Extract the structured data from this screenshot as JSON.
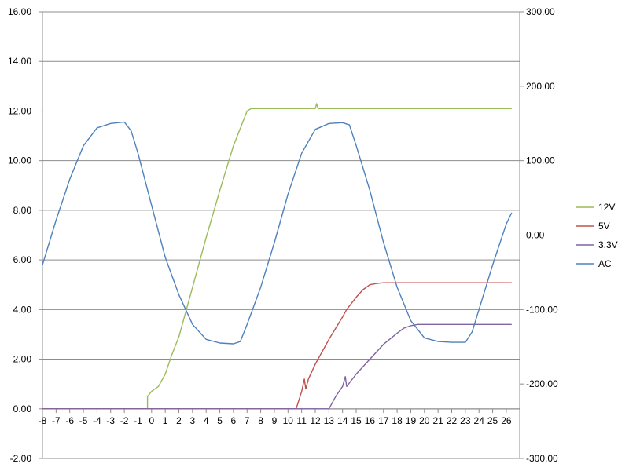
{
  "chart_data": {
    "type": "line",
    "title": "",
    "xlabel": "",
    "ylabel": "",
    "y2label": "",
    "grid": "horizontal",
    "legend_position": "right",
    "xlim": [
      -8,
      26.4
    ],
    "ylim": [
      -2,
      16
    ],
    "y2lim": [
      -300,
      300
    ],
    "x_ticks": [
      "-8",
      "-7",
      "-6",
      "-5",
      "-4",
      "-3",
      "-2",
      "-1",
      "0",
      "1",
      "2",
      "3",
      "4",
      "5",
      "6",
      "7",
      "8",
      "9",
      "10",
      "11",
      "12",
      "13",
      "14",
      "15",
      "16",
      "17",
      "18",
      "19",
      "20",
      "21",
      "22",
      "23",
      "24",
      "25",
      "26"
    ],
    "y_ticks": [
      "-2.00",
      "0.00",
      "2.00",
      "4.00",
      "6.00",
      "8.00",
      "10.00",
      "12.00",
      "14.00",
      "16.00"
    ],
    "y2_ticks": [
      "-300.00",
      "-200.00",
      "-100.00",
      "0.00",
      "100.00",
      "200.00",
      "300.00"
    ],
    "series": [
      {
        "name": "12V",
        "axis": "left",
        "color": "#9BBB59",
        "points": [
          [
            -8,
            0
          ],
          [
            -0.3,
            0
          ],
          [
            -0.3,
            0.5
          ],
          [
            0,
            0.7
          ],
          [
            0.5,
            0.9
          ],
          [
            1,
            1.4
          ],
          [
            1.5,
            2.2
          ],
          [
            2,
            2.9
          ],
          [
            3,
            4.9
          ],
          [
            4,
            6.9
          ],
          [
            5,
            8.8
          ],
          [
            6,
            10.6
          ],
          [
            7,
            12.0
          ],
          [
            7.3,
            12.1
          ],
          [
            12,
            12.1
          ],
          [
            12.1,
            12.3
          ],
          [
            12.2,
            12.1
          ],
          [
            26.4,
            12.1
          ]
        ]
      },
      {
        "name": "5V",
        "axis": "left",
        "color": "#C0504D",
        "points": [
          [
            -8,
            0
          ],
          [
            10.6,
            0
          ],
          [
            11,
            0.7
          ],
          [
            11.2,
            1.2
          ],
          [
            11.3,
            0.8
          ],
          [
            11.5,
            1.2
          ],
          [
            12,
            1.8
          ],
          [
            13,
            2.8
          ],
          [
            14,
            3.7
          ],
          [
            14.3,
            4.0
          ],
          [
            15,
            4.5
          ],
          [
            15.5,
            4.8
          ],
          [
            16,
            5.0
          ],
          [
            16.5,
            5.05
          ],
          [
            17,
            5.08
          ],
          [
            26.4,
            5.08
          ]
        ]
      },
      {
        "name": "3.3V",
        "axis": "left",
        "color": "#8064A2",
        "points": [
          [
            -8,
            0
          ],
          [
            13,
            0
          ],
          [
            13.5,
            0.5
          ],
          [
            14,
            0.9
          ],
          [
            14.2,
            1.3
          ],
          [
            14.3,
            0.9
          ],
          [
            15,
            1.4
          ],
          [
            16,
            2.0
          ],
          [
            17,
            2.6
          ],
          [
            18,
            3.05
          ],
          [
            18.5,
            3.25
          ],
          [
            19,
            3.35
          ],
          [
            19.5,
            3.4
          ],
          [
            26.4,
            3.4
          ]
        ]
      },
      {
        "name": "AC",
        "axis": "right",
        "color": "#4F81BD",
        "points": [
          [
            -8,
            -40
          ],
          [
            -7.5,
            -10
          ],
          [
            -7,
            20
          ],
          [
            -6,
            75
          ],
          [
            -5,
            120
          ],
          [
            -4,
            144
          ],
          [
            -3,
            150
          ],
          [
            -2,
            152
          ],
          [
            -1.5,
            140
          ],
          [
            -1,
            110
          ],
          [
            0,
            40
          ],
          [
            1,
            -30
          ],
          [
            2,
            -80
          ],
          [
            3,
            -120
          ],
          [
            4,
            -140
          ],
          [
            5,
            -145
          ],
          [
            6,
            -146
          ],
          [
            6.5,
            -143
          ],
          [
            7,
            -120
          ],
          [
            8,
            -70
          ],
          [
            9,
            -10
          ],
          [
            10,
            55
          ],
          [
            11,
            110
          ],
          [
            12,
            142
          ],
          [
            13,
            150
          ],
          [
            14,
            151
          ],
          [
            14.5,
            148
          ],
          [
            15,
            120
          ],
          [
            16,
            60
          ],
          [
            17,
            -10
          ],
          [
            18,
            -70
          ],
          [
            19,
            -115
          ],
          [
            20,
            -138
          ],
          [
            21,
            -143
          ],
          [
            22,
            -144
          ],
          [
            23,
            -144
          ],
          [
            23.5,
            -130
          ],
          [
            24,
            -100
          ],
          [
            25,
            -40
          ],
          [
            26,
            15
          ],
          [
            26.4,
            30
          ]
        ]
      }
    ]
  }
}
